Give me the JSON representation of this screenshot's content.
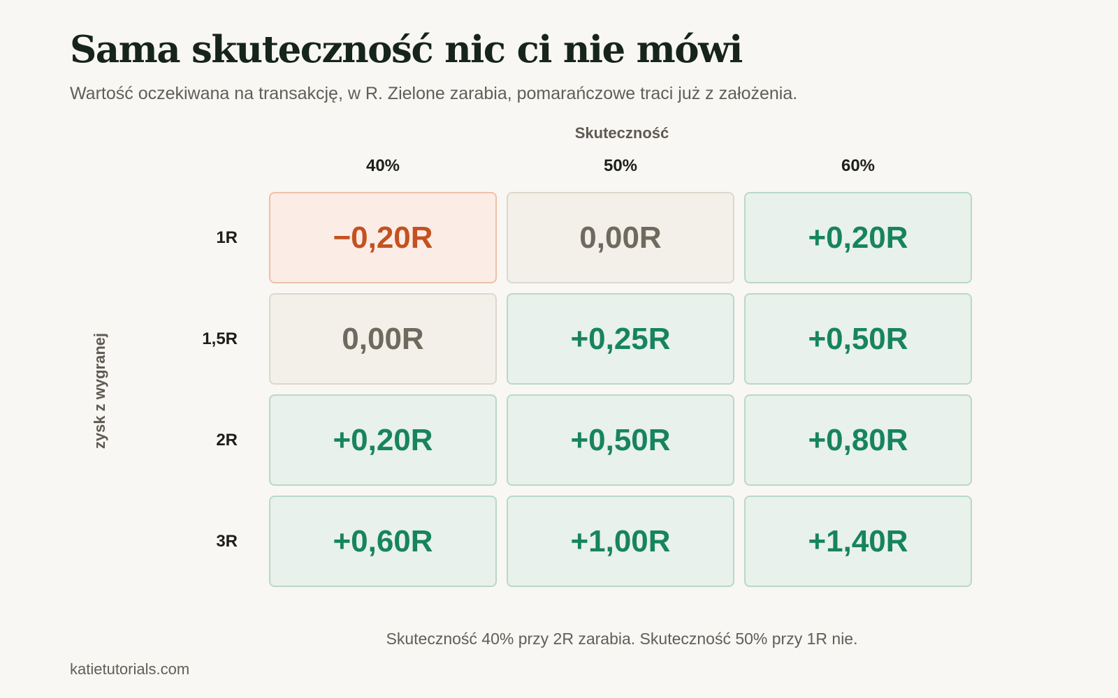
{
  "title": "Sama skuteczność nic ci nie mówi",
  "subtitle": "Wartość oczekiwana na transakcję, w R. Zielone zarabia, pomarańczowe traci już z założenia.",
  "footnote": "Skuteczność 40% przy 2R zarabia. Skuteczność 50% przy 1R nie.",
  "site": "katietutorials.com",
  "colors": {
    "positive": "#17845f",
    "zero": "#6f6a5d",
    "negative": "#c4511f"
  },
  "chart_data": {
    "type": "heatmap",
    "xlabel": "Skuteczność",
    "ylabel": "zysk z wygranej",
    "x_categories": [
      "40%",
      "50%",
      "60%"
    ],
    "y_categories": [
      "1R",
      "1,5R",
      "2R",
      "3R"
    ],
    "values": [
      [
        -0.2,
        0.0,
        0.2
      ],
      [
        0.0,
        0.25,
        0.5
      ],
      [
        0.2,
        0.5,
        0.8
      ],
      [
        0.6,
        1.0,
        1.4
      ]
    ],
    "labels": [
      [
        "−0,20R",
        "0,00R",
        "+0,20R"
      ],
      [
        "0,00R",
        "+0,25R",
        "+0,50R"
      ],
      [
        "+0,20R",
        "+0,50R",
        "+0,80R"
      ],
      [
        "+0,60R",
        "+1,00R",
        "+1,40R"
      ]
    ]
  }
}
